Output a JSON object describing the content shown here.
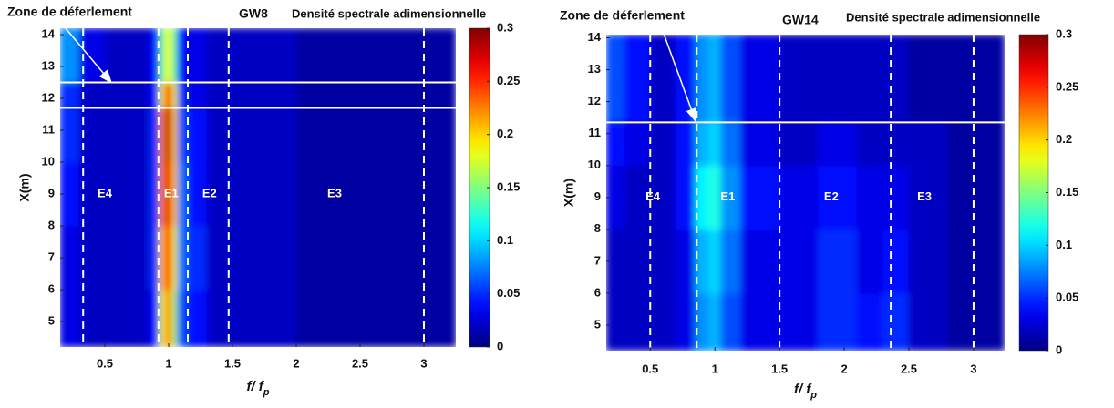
{
  "chart_data": [
    {
      "type": "heatmap",
      "annotation": "Zone de déferlement",
      "title": "GW8",
      "colorbar_label": "Densité spectrale adimensionnelle",
      "ylabel": "X(m)",
      "xlabel": {
        "text": "f/ f",
        "subscript": "p"
      },
      "colormap": "jet",
      "xlim": [
        0.15,
        3.25
      ],
      "xticks": [
        0.5,
        1,
        1.5,
        2,
        2.5,
        3
      ],
      "ylim": [
        4.2,
        14.2
      ],
      "yticks": [
        5,
        6,
        7,
        8,
        9,
        10,
        11,
        12,
        13,
        14
      ],
      "clim": [
        0,
        0.3
      ],
      "cticks": [
        0,
        0.05,
        0.1,
        0.15,
        0.2,
        0.25,
        0.3
      ],
      "x_edges": [
        0.15,
        0.3,
        0.5,
        0.7,
        0.85,
        0.93,
        0.97,
        1.03,
        1.07,
        1.15,
        1.3,
        1.6,
        2,
        2.5,
        3.25
      ],
      "y_edges": [
        4.2,
        6,
        8,
        10,
        11.7,
        12.5,
        14.2
      ],
      "z": [
        [
          0.03,
          0.02,
          0.02,
          0.02,
          0.04,
          0.18,
          0.22,
          0.16,
          0.06,
          0.04,
          0.02,
          0.02,
          0.01,
          0.01
        ],
        [
          0.03,
          0.02,
          0.02,
          0.02,
          0.05,
          0.2,
          0.25,
          0.18,
          0.07,
          0.05,
          0.02,
          0.02,
          0.01,
          0.01
        ],
        [
          0.04,
          0.02,
          0.02,
          0.02,
          0.05,
          0.22,
          0.27,
          0.2,
          0.07,
          0.04,
          0.02,
          0.02,
          0.01,
          0.01
        ],
        [
          0.05,
          0.02,
          0.02,
          0.02,
          0.05,
          0.22,
          0.28,
          0.2,
          0.06,
          0.04,
          0.02,
          0.02,
          0.01,
          0.01
        ],
        [
          0.05,
          0.02,
          0.02,
          0.02,
          0.04,
          0.18,
          0.26,
          0.18,
          0.05,
          0.03,
          0.02,
          0.02,
          0.01,
          0.01
        ],
        [
          0.08,
          0.03,
          0.02,
          0.02,
          0.04,
          0.14,
          0.18,
          0.14,
          0.04,
          0.03,
          0.02,
          0.02,
          0.01,
          0.01
        ]
      ],
      "dashed_x": [
        0.33,
        0.92,
        1.15,
        1.47,
        3.0
      ],
      "solid_y": [
        12.5,
        11.7
      ],
      "arrow": {
        "x": [
          0.15,
          0.55
        ],
        "y": [
          14.4,
          12.5
        ]
      },
      "regions": [
        {
          "label": "E4",
          "x": 0.5,
          "y": 9
        },
        {
          "label": "E1",
          "x": 1.02,
          "y": 9
        },
        {
          "label": "E2",
          "x": 1.32,
          "y": 9
        },
        {
          "label": "E3",
          "x": 2.3,
          "y": 9
        }
      ]
    },
    {
      "type": "heatmap",
      "annotation": "Zone de déferlement",
      "title": "GW14",
      "colorbar_label": "Densité spectrale adimensionnelle",
      "ylabel": "X(m)",
      "xlabel": {
        "text": "f/ f",
        "subscript": "p"
      },
      "colormap": "jet",
      "xlim": [
        0.16,
        3.24
      ],
      "xticks": [
        0.5,
        1,
        1.5,
        2,
        2.5,
        3
      ],
      "ylim": [
        4.2,
        14.1
      ],
      "yticks": [
        5,
        6,
        7,
        8,
        9,
        10,
        11,
        12,
        13,
        14
      ],
      "clim": [
        0,
        0.3
      ],
      "cticks": [
        0,
        0.05,
        0.1,
        0.15,
        0.2,
        0.25,
        0.3
      ],
      "x_edges": [
        0.16,
        0.3,
        0.5,
        0.7,
        0.85,
        0.95,
        1.05,
        1.2,
        1.5,
        1.8,
        2.1,
        2.3,
        2.5,
        2.8,
        3.24
      ],
      "y_edges": [
        4.2,
        6,
        8,
        10,
        11.4,
        14.1
      ],
      "z": [
        [
          0.02,
          0.02,
          0.02,
          0.03,
          0.08,
          0.09,
          0.06,
          0.03,
          0.03,
          0.05,
          0.04,
          0.05,
          0.02,
          0.01
        ],
        [
          0.02,
          0.02,
          0.02,
          0.03,
          0.09,
          0.1,
          0.07,
          0.03,
          0.03,
          0.05,
          0.03,
          0.04,
          0.02,
          0.01
        ],
        [
          0.03,
          0.02,
          0.02,
          0.04,
          0.11,
          0.12,
          0.08,
          0.04,
          0.03,
          0.04,
          0.03,
          0.03,
          0.02,
          0.01
        ],
        [
          0.04,
          0.03,
          0.02,
          0.04,
          0.09,
          0.1,
          0.07,
          0.03,
          0.02,
          0.03,
          0.02,
          0.02,
          0.02,
          0.01
        ],
        [
          0.06,
          0.04,
          0.02,
          0.04,
          0.08,
          0.09,
          0.06,
          0.03,
          0.02,
          0.02,
          0.02,
          0.02,
          0.01,
          0.01
        ]
      ],
      "dashed_x": [
        0.5,
        0.86,
        1.5,
        2.36,
        3.0
      ],
      "solid_y": [
        11.35
      ],
      "arrow": {
        "x": [
          0.58,
          0.85
        ],
        "y": [
          14.4,
          11.4
        ]
      },
      "regions": [
        {
          "label": "E4",
          "x": 0.52,
          "y": 9
        },
        {
          "label": "E1",
          "x": 1.1,
          "y": 9
        },
        {
          "label": "E2",
          "x": 1.9,
          "y": 9
        },
        {
          "label": "E3",
          "x": 2.62,
          "y": 9
        }
      ]
    }
  ]
}
